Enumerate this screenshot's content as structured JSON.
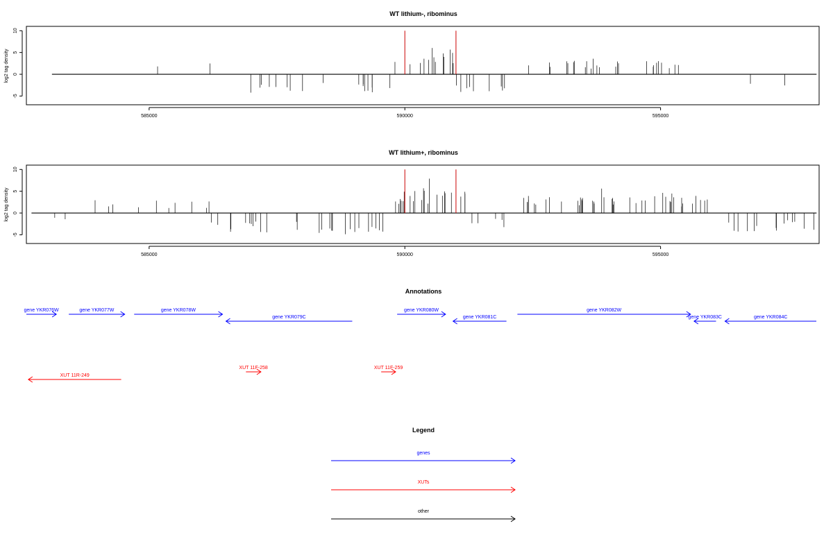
{
  "chart_data": [
    {
      "type": "bar",
      "title": "WT lithium-, ribominus",
      "ylabel": "log2 tag density",
      "xlim": [
        582600,
        598100
      ],
      "ylim": [
        -7,
        11
      ],
      "x_ticks": [
        585000,
        590000,
        595000
      ],
      "y_ticks": [
        -5,
        0,
        5,
        10
      ],
      "y_tick_labels": [
        "-5",
        "0",
        "5",
        "10"
      ],
      "marker_color": "#cc0000",
      "markers": [
        590000,
        591000
      ],
      "density_segments": [
        {
          "start": 583200,
          "end": 586200,
          "amp": 3.0,
          "density": 0.006
        },
        {
          "start": 586400,
          "end": 589800,
          "amp": -4.5,
          "density": 0.05
        },
        {
          "start": 589800,
          "end": 591000,
          "amp": 4.8,
          "density": 0.11
        },
        {
          "start": 591000,
          "end": 592100,
          "amp": -4.2,
          "density": 0.08
        },
        {
          "start": 592400,
          "end": 596000,
          "amp": 3.6,
          "density": 0.07
        },
        {
          "start": 596100,
          "end": 598000,
          "amp": -3.2,
          "density": 0.01
        }
      ]
    },
    {
      "type": "bar",
      "title": "WT lithium+, ribominus",
      "ylabel": "log2 tag density",
      "xlim": [
        582600,
        598100
      ],
      "ylim": [
        -7,
        11
      ],
      "x_ticks": [
        585000,
        590000,
        595000
      ],
      "y_ticks": [
        -5,
        0,
        5,
        10
      ],
      "y_tick_labels": [
        "-5",
        "0",
        "5",
        "10"
      ],
      "marker_color": "#cc0000",
      "markers": [
        590000,
        591000
      ],
      "density_segments": [
        {
          "start": 582800,
          "end": 583400,
          "amp": -1.8,
          "density": 0.02
        },
        {
          "start": 583000,
          "end": 586200,
          "amp": 3.0,
          "density": 0.03
        },
        {
          "start": 586200,
          "end": 589600,
          "amp": -4.8,
          "density": 0.08
        },
        {
          "start": 589800,
          "end": 591200,
          "amp": 5.5,
          "density": 0.16
        },
        {
          "start": 591000,
          "end": 592000,
          "amp": -3.6,
          "density": 0.05
        },
        {
          "start": 592300,
          "end": 596000,
          "amp": 4.0,
          "density": 0.12
        },
        {
          "start": 596000,
          "end": 598000,
          "amp": -4.4,
          "density": 0.07
        }
      ]
    }
  ],
  "annotations": {
    "title": "Annotations",
    "features": [
      {
        "label": "gene YKR076W",
        "start": 582600,
        "end": 583200,
        "strand": "+",
        "color": "#0000ff",
        "row": 0
      },
      {
        "label": "gene YKR077W",
        "start": 583450,
        "end": 584570,
        "strand": "+",
        "color": "#0000ff",
        "row": 0
      },
      {
        "label": "gene YKR078W",
        "start": 584760,
        "end": 586530,
        "strand": "+",
        "color": "#0000ff",
        "row": 0
      },
      {
        "label": "gene YKR079C",
        "start": 586600,
        "end": 589130,
        "strand": "-",
        "color": "#0000ff",
        "row": 1
      },
      {
        "label": "gene YKR080W",
        "start": 590030,
        "end": 591000,
        "strand": "+",
        "color": "#0000ff",
        "row": 0
      },
      {
        "label": "gene YKR081C",
        "start": 591150,
        "end": 592220,
        "strand": "-",
        "color": "#0000ff",
        "row": 1
      },
      {
        "label": "gene YKR082W",
        "start": 592440,
        "end": 595910,
        "strand": "+",
        "color": "#0000ff",
        "row": 0
      },
      {
        "label": "gene YKR083C",
        "start": 595980,
        "end": 596420,
        "strand": "-",
        "color": "#0000ff",
        "row": 1
      },
      {
        "label": "gene YKR084C",
        "start": 596600,
        "end": 598430,
        "strand": "-",
        "color": "#0000ff",
        "row": 1
      },
      {
        "label": "XUT 11R-249",
        "start": 582640,
        "end": 584500,
        "strand": "-",
        "color": "#ff0000",
        "row": 3
      },
      {
        "label": "XUT 11F-258",
        "start": 587000,
        "end": 587300,
        "strand": "+",
        "color": "#ff0000",
        "row": 2
      },
      {
        "label": "XUT 11F-259",
        "start": 589710,
        "end": 590000,
        "strand": "+",
        "color": "#ff0000",
        "row": 2
      }
    ]
  },
  "legend": {
    "title": "Legend",
    "items": [
      {
        "label": "genes",
        "color": "#0000ff"
      },
      {
        "label": "XUTs",
        "color": "#ff0000"
      },
      {
        "label": "other",
        "color": "#000000"
      }
    ]
  }
}
